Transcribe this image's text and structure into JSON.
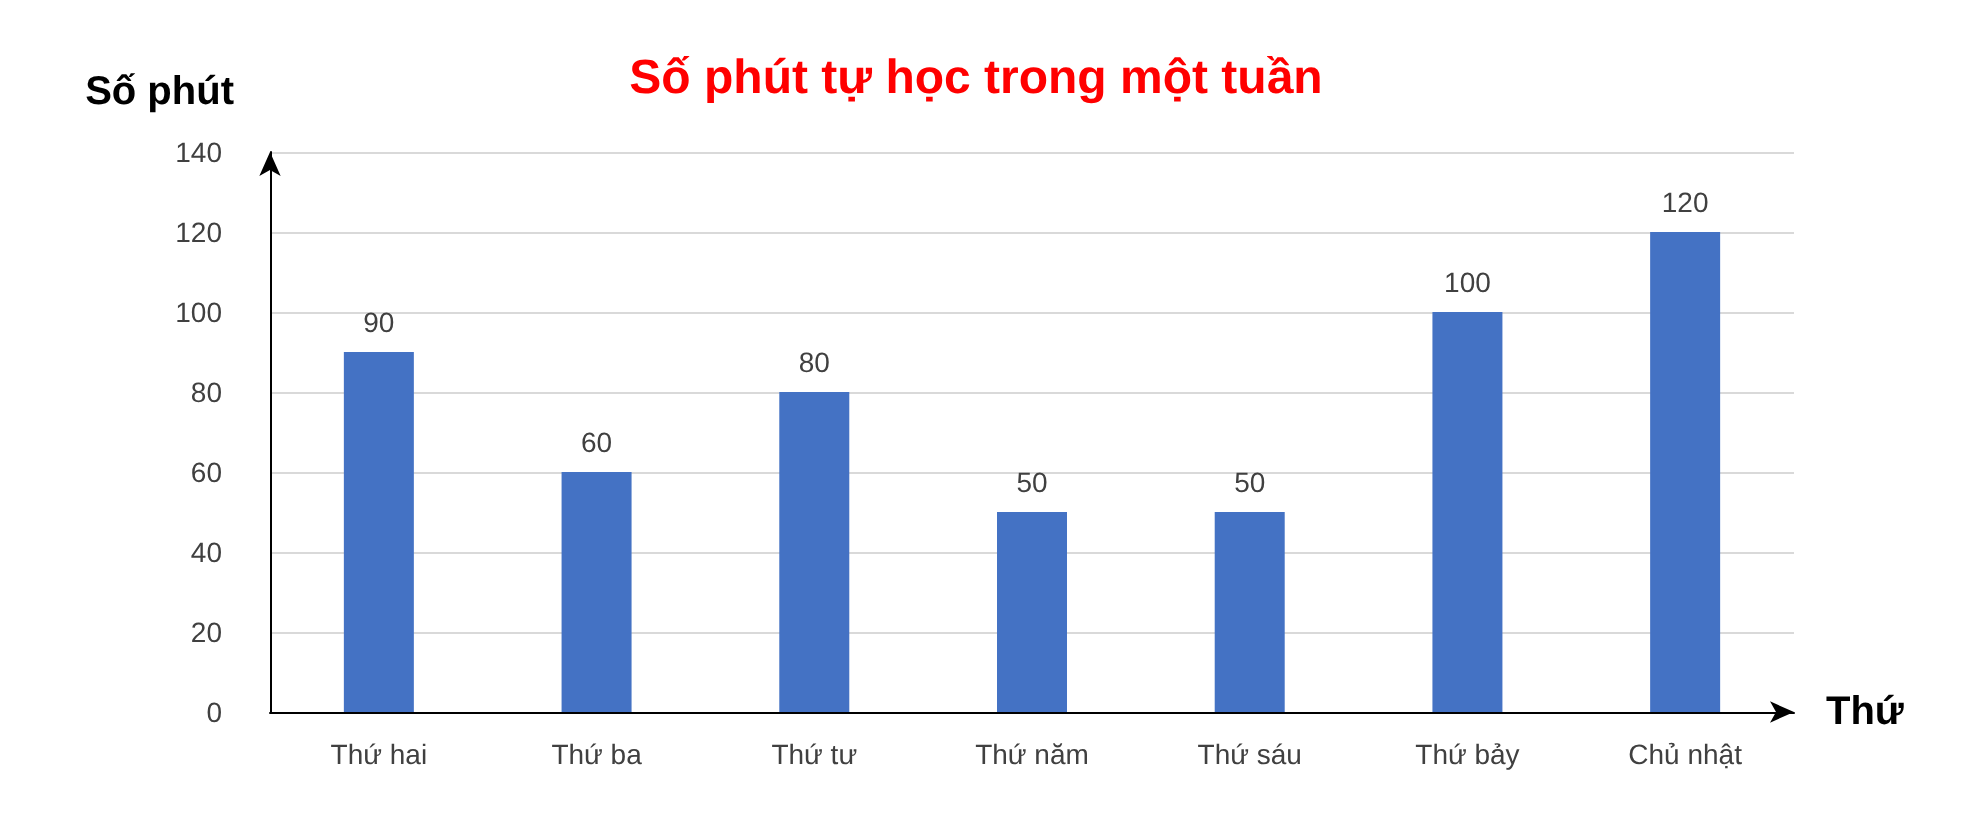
{
  "chart_data": {
    "type": "bar",
    "title": "Số phút tự học trong một tuần",
    "xlabel": "Thứ",
    "ylabel": "Số phút",
    "categories": [
      "Thứ hai",
      "Thứ ba",
      "Thứ tư",
      "Thứ năm",
      "Thứ sáu",
      "Thứ bảy",
      "Chủ nhật"
    ],
    "values": [
      90,
      60,
      80,
      50,
      50,
      100,
      120
    ],
    "color": "#4472c4",
    "ylim": [
      0,
      140
    ],
    "yticks": [
      0,
      20,
      40,
      60,
      80,
      100,
      120,
      140
    ],
    "grid": "y",
    "data_labels": true
  }
}
